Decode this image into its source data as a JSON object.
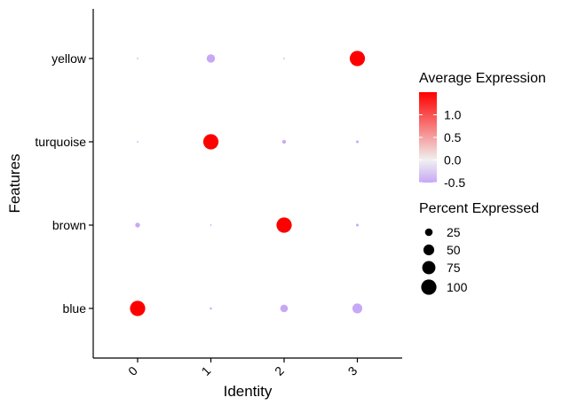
{
  "chart_data": {
    "type": "dotplot",
    "xlabel": "Identity",
    "ylabel": "Features",
    "categories": [
      "0",
      "1",
      "2",
      "3"
    ],
    "features": [
      "blue",
      "brown",
      "turquoise",
      "yellow"
    ],
    "points": [
      {
        "feature": "blue",
        "identity": "0",
        "avg_exp": 1.5,
        "pct": 100
      },
      {
        "feature": "blue",
        "identity": "1",
        "avg_exp": -0.5,
        "pct": 2
      },
      {
        "feature": "blue",
        "identity": "2",
        "avg_exp": -0.5,
        "pct": 25
      },
      {
        "feature": "blue",
        "identity": "3",
        "avg_exp": -0.5,
        "pct": 42
      },
      {
        "feature": "brown",
        "identity": "0",
        "avg_exp": -0.5,
        "pct": 10
      },
      {
        "feature": "brown",
        "identity": "1",
        "avg_exp": -0.5,
        "pct": 1
      },
      {
        "feature": "brown",
        "identity": "2",
        "avg_exp": 1.5,
        "pct": 100
      },
      {
        "feature": "brown",
        "identity": "3",
        "avg_exp": -0.5,
        "pct": 3
      },
      {
        "feature": "turquoise",
        "identity": "0",
        "avg_exp": -0.5,
        "pct": 1
      },
      {
        "feature": "turquoise",
        "identity": "1",
        "avg_exp": 1.5,
        "pct": 100
      },
      {
        "feature": "turquoise",
        "identity": "2",
        "avg_exp": -0.5,
        "pct": 6
      },
      {
        "feature": "turquoise",
        "identity": "3",
        "avg_exp": -0.5,
        "pct": 3
      },
      {
        "feature": "yellow",
        "identity": "0",
        "avg_exp": -0.5,
        "pct": 1
      },
      {
        "feature": "yellow",
        "identity": "1",
        "avg_exp": -0.5,
        "pct": 30
      },
      {
        "feature": "yellow",
        "identity": "2",
        "avg_exp": -0.5,
        "pct": 1
      },
      {
        "feature": "yellow",
        "identity": "3",
        "avg_exp": 1.5,
        "pct": 100
      }
    ],
    "color_legend": {
      "title": "Average Expression",
      "ticks": [
        {
          "value": 1.0,
          "label": "1.0"
        },
        {
          "value": 0.5,
          "label": "0.5"
        },
        {
          "value": 0.0,
          "label": "0.0"
        },
        {
          "value": -0.5,
          "label": "-0.5"
        }
      ],
      "min": -0.5,
      "max": 1.5,
      "low_color": "#C7A8F6",
      "mid_color": "#F0F0F0",
      "high_color": "#FF0000"
    },
    "size_legend": {
      "title": "Percent Expressed",
      "entries": [
        {
          "pct": 25,
          "label": "25"
        },
        {
          "pct": 50,
          "label": "50"
        },
        {
          "pct": 75,
          "label": "75"
        },
        {
          "pct": 100,
          "label": "100"
        }
      ]
    },
    "legend_position": "right"
  }
}
